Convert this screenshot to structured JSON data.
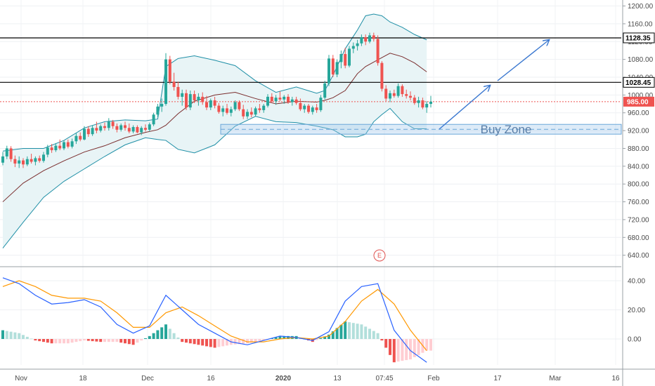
{
  "colors": {
    "up": "#26a69a",
    "down": "#ef5350",
    "band_line": "#1f8fa6",
    "band_fill": "#e8f4f6",
    "basis": "#7a2d2d",
    "level": "#000000",
    "current": "#ef5350",
    "zone": "#9ec7ea",
    "arrow": "#3b78d0",
    "macd": "#2962ff",
    "signal": "#ff9800"
  },
  "chart_data": [
    {
      "type": "candlestick",
      "price_ticks": [
        "1200.00",
        "1160.00",
        "1120.00",
        "1080.00",
        "1040.00",
        "1000.00",
        "960.00",
        "920.00",
        "880.00",
        "840.00",
        "800.00",
        "760.00",
        "720.00",
        "680.00",
        "640.00"
      ],
      "ylim": [
        630,
        1210
      ],
      "time_ticks": [
        "Nov",
        "18",
        "Dec",
        "16",
        "2020",
        "13",
        "07:45",
        "Feb",
        "17",
        "Mar",
        "16"
      ],
      "levels": [
        {
          "label": "1128.35",
          "value": 1128.35
        },
        {
          "label": "1028.45",
          "value": 1028.45
        }
      ],
      "current_price": {
        "label": "985.00",
        "value": 985.0
      },
      "buy_zone": {
        "label": "Buy Zone",
        "low": 912,
        "high": 934
      },
      "event_marker": "E",
      "ohlc": [
        {
          "o": 848,
          "h": 872,
          "l": 842,
          "c": 862
        },
        {
          "o": 862,
          "h": 886,
          "l": 856,
          "c": 880
        },
        {
          "o": 880,
          "h": 885,
          "l": 850,
          "c": 856
        },
        {
          "o": 856,
          "h": 864,
          "l": 838,
          "c": 846
        },
        {
          "o": 846,
          "h": 862,
          "l": 836,
          "c": 853
        },
        {
          "o": 853,
          "h": 858,
          "l": 836,
          "c": 844
        },
        {
          "o": 844,
          "h": 862,
          "l": 840,
          "c": 856
        },
        {
          "o": 856,
          "h": 868,
          "l": 846,
          "c": 850
        },
        {
          "o": 850,
          "h": 862,
          "l": 842,
          "c": 858
        },
        {
          "o": 858,
          "h": 864,
          "l": 848,
          "c": 852
        },
        {
          "o": 852,
          "h": 872,
          "l": 848,
          "c": 866
        },
        {
          "o": 866,
          "h": 888,
          "l": 860,
          "c": 882
        },
        {
          "o": 882,
          "h": 890,
          "l": 870,
          "c": 876
        },
        {
          "o": 876,
          "h": 892,
          "l": 872,
          "c": 886
        },
        {
          "o": 886,
          "h": 900,
          "l": 876,
          "c": 880
        },
        {
          "o": 880,
          "h": 898,
          "l": 876,
          "c": 894
        },
        {
          "o": 894,
          "h": 900,
          "l": 880,
          "c": 884
        },
        {
          "o": 884,
          "h": 902,
          "l": 880,
          "c": 896
        },
        {
          "o": 896,
          "h": 914,
          "l": 890,
          "c": 908
        },
        {
          "o": 908,
          "h": 916,
          "l": 896,
          "c": 900
        },
        {
          "o": 900,
          "h": 930,
          "l": 898,
          "c": 924
        },
        {
          "o": 924,
          "h": 930,
          "l": 906,
          "c": 912
        },
        {
          "o": 912,
          "h": 932,
          "l": 908,
          "c": 926
        },
        {
          "o": 926,
          "h": 940,
          "l": 914,
          "c": 920
        },
        {
          "o": 920,
          "h": 934,
          "l": 916,
          "c": 930
        },
        {
          "o": 930,
          "h": 938,
          "l": 920,
          "c": 926
        },
        {
          "o": 926,
          "h": 948,
          "l": 920,
          "c": 940
        },
        {
          "o": 940,
          "h": 944,
          "l": 924,
          "c": 930
        },
        {
          "o": 930,
          "h": 936,
          "l": 916,
          "c": 922
        },
        {
          "o": 922,
          "h": 936,
          "l": 918,
          "c": 932
        },
        {
          "o": 932,
          "h": 940,
          "l": 920,
          "c": 926
        },
        {
          "o": 926,
          "h": 936,
          "l": 914,
          "c": 918
        },
        {
          "o": 918,
          "h": 932,
          "l": 914,
          "c": 928
        },
        {
          "o": 928,
          "h": 932,
          "l": 914,
          "c": 916
        },
        {
          "o": 916,
          "h": 930,
          "l": 910,
          "c": 926
        },
        {
          "o": 926,
          "h": 934,
          "l": 918,
          "c": 922
        },
        {
          "o": 922,
          "h": 938,
          "l": 918,
          "c": 934
        },
        {
          "o": 934,
          "h": 960,
          "l": 930,
          "c": 956
        },
        {
          "o": 956,
          "h": 980,
          "l": 950,
          "c": 974
        },
        {
          "o": 974,
          "h": 992,
          "l": 962,
          "c": 980
        },
        {
          "o": 980,
          "h": 1094,
          "l": 976,
          "c": 1080
        },
        {
          "o": 1080,
          "h": 1088,
          "l": 1024,
          "c": 1030
        },
        {
          "o": 1030,
          "h": 1050,
          "l": 1010,
          "c": 1018
        },
        {
          "o": 1018,
          "h": 1030,
          "l": 990,
          "c": 996
        },
        {
          "o": 996,
          "h": 1012,
          "l": 976,
          "c": 1004
        },
        {
          "o": 1004,
          "h": 1012,
          "l": 966,
          "c": 972
        },
        {
          "o": 972,
          "h": 1010,
          "l": 966,
          "c": 1002
        },
        {
          "o": 1002,
          "h": 1010,
          "l": 982,
          "c": 988
        },
        {
          "o": 988,
          "h": 1004,
          "l": 976,
          "c": 996
        },
        {
          "o": 996,
          "h": 1006,
          "l": 978,
          "c": 984
        },
        {
          "o": 984,
          "h": 998,
          "l": 966,
          "c": 972
        },
        {
          "o": 972,
          "h": 992,
          "l": 966,
          "c": 988
        },
        {
          "o": 988,
          "h": 996,
          "l": 970,
          "c": 976
        },
        {
          "o": 976,
          "h": 982,
          "l": 958,
          "c": 962
        },
        {
          "o": 962,
          "h": 976,
          "l": 952,
          "c": 970
        },
        {
          "o": 970,
          "h": 980,
          "l": 956,
          "c": 960
        },
        {
          "o": 960,
          "h": 974,
          "l": 952,
          "c": 968
        },
        {
          "o": 968,
          "h": 988,
          "l": 964,
          "c": 984
        },
        {
          "o": 984,
          "h": 988,
          "l": 964,
          "c": 968
        },
        {
          "o": 968,
          "h": 978,
          "l": 946,
          "c": 952
        },
        {
          "o": 952,
          "h": 968,
          "l": 946,
          "c": 962
        },
        {
          "o": 962,
          "h": 972,
          "l": 950,
          "c": 956
        },
        {
          "o": 956,
          "h": 974,
          "l": 952,
          "c": 970
        },
        {
          "o": 970,
          "h": 980,
          "l": 960,
          "c": 966
        },
        {
          "o": 966,
          "h": 980,
          "l": 960,
          "c": 976
        },
        {
          "o": 976,
          "h": 1002,
          "l": 972,
          "c": 996
        },
        {
          "o": 996,
          "h": 1004,
          "l": 982,
          "c": 986
        },
        {
          "o": 986,
          "h": 1000,
          "l": 978,
          "c": 994
        },
        {
          "o": 994,
          "h": 1008,
          "l": 986,
          "c": 990
        },
        {
          "o": 990,
          "h": 1000,
          "l": 980,
          "c": 996
        },
        {
          "o": 996,
          "h": 1002,
          "l": 980,
          "c": 984
        },
        {
          "o": 984,
          "h": 996,
          "l": 976,
          "c": 990
        },
        {
          "o": 990,
          "h": 996,
          "l": 978,
          "c": 982
        },
        {
          "o": 982,
          "h": 992,
          "l": 964,
          "c": 968
        },
        {
          "o": 968,
          "h": 980,
          "l": 960,
          "c": 976
        },
        {
          "o": 976,
          "h": 980,
          "l": 958,
          "c": 962
        },
        {
          "o": 962,
          "h": 976,
          "l": 956,
          "c": 972
        },
        {
          "o": 972,
          "h": 980,
          "l": 960,
          "c": 966
        },
        {
          "o": 966,
          "h": 1000,
          "l": 962,
          "c": 994
        },
        {
          "o": 994,
          "h": 1032,
          "l": 990,
          "c": 1026
        },
        {
          "o": 1026,
          "h": 1090,
          "l": 1020,
          "c": 1082
        },
        {
          "o": 1082,
          "h": 1090,
          "l": 1040,
          "c": 1046
        },
        {
          "o": 1046,
          "h": 1080,
          "l": 1040,
          "c": 1074
        },
        {
          "o": 1074,
          "h": 1100,
          "l": 1060,
          "c": 1092
        },
        {
          "o": 1092,
          "h": 1106,
          "l": 1060,
          "c": 1066
        },
        {
          "o": 1066,
          "h": 1110,
          "l": 1062,
          "c": 1104
        },
        {
          "o": 1104,
          "h": 1118,
          "l": 1094,
          "c": 1110
        },
        {
          "o": 1110,
          "h": 1124,
          "l": 1100,
          "c": 1116
        },
        {
          "o": 1116,
          "h": 1136,
          "l": 1110,
          "c": 1130
        },
        {
          "o": 1130,
          "h": 1136,
          "l": 1112,
          "c": 1120
        },
        {
          "o": 1120,
          "h": 1140,
          "l": 1116,
          "c": 1134
        },
        {
          "o": 1134,
          "h": 1140,
          "l": 1120,
          "c": 1126
        },
        {
          "o": 1126,
          "h": 1134,
          "l": 1066,
          "c": 1072
        },
        {
          "o": 1072,
          "h": 1076,
          "l": 1008,
          "c": 1014
        },
        {
          "o": 1014,
          "h": 1022,
          "l": 986,
          "c": 992
        },
        {
          "o": 992,
          "h": 1010,
          "l": 984,
          "c": 1004
        },
        {
          "o": 1004,
          "h": 1012,
          "l": 994,
          "c": 998
        },
        {
          "o": 998,
          "h": 1026,
          "l": 994,
          "c": 1020
        },
        {
          "o": 1020,
          "h": 1024,
          "l": 996,
          "c": 1002
        },
        {
          "o": 1002,
          "h": 1012,
          "l": 992,
          "c": 998
        },
        {
          "o": 998,
          "h": 1008,
          "l": 988,
          "c": 994
        },
        {
          "o": 994,
          "h": 1000,
          "l": 978,
          "c": 982
        },
        {
          "o": 982,
          "h": 996,
          "l": 972,
          "c": 988
        },
        {
          "o": 988,
          "h": 994,
          "l": 968,
          "c": 972
        },
        {
          "o": 972,
          "h": 986,
          "l": 960,
          "c": 980
        },
        {
          "o": 980,
          "h": 998,
          "l": 972,
          "c": 985
        }
      ],
      "bands": {
        "x_index": [
          0,
          5,
          10,
          15,
          20,
          25,
          30,
          35,
          38,
          40,
          43,
          47,
          52,
          57,
          62,
          67,
          72,
          77,
          79,
          81,
          84,
          87,
          89,
          91,
          93,
          95,
          98,
          101,
          104
        ],
        "upper": [
          874,
          880,
          880,
          898,
          926,
          940,
          944,
          942,
          946,
          1064,
          1082,
          1088,
          1078,
          1066,
          1032,
          1006,
          1018,
          1004,
          1010,
          1044,
          1104,
          1146,
          1178,
          1182,
          1178,
          1164,
          1152,
          1136,
          1124
        ],
        "basis": [
          760,
          802,
          830,
          852,
          872,
          886,
          904,
          916,
          922,
          932,
          958,
          986,
          1000,
          1006,
          992,
          980,
          986,
          984,
          988,
          994,
          1010,
          1048,
          1064,
          1074,
          1084,
          1094,
          1086,
          1072,
          1052
        ],
        "lower": [
          656,
          714,
          770,
          806,
          834,
          862,
          888,
          904,
          900,
          898,
          878,
          870,
          888,
          930,
          952,
          940,
          938,
          930,
          926,
          922,
          906,
          906,
          912,
          940,
          956,
          970,
          940,
          924,
          924
        ]
      }
    },
    {
      "type": "macd",
      "ticks": [
        "40.00",
        "20.00",
        "0.00"
      ],
      "ylim": [
        -18,
        46
      ],
      "x_index": [
        0,
        4,
        8,
        12,
        16,
        20,
        24,
        28,
        32,
        36,
        40,
        44,
        48,
        52,
        56,
        60,
        64,
        68,
        72,
        76,
        80,
        84,
        88,
        92,
        96,
        100,
        104
      ],
      "macd": [
        42,
        38,
        30,
        24,
        25,
        27,
        22,
        10,
        4,
        9,
        30,
        20,
        10,
        4,
        -2,
        -4,
        -1,
        2,
        1,
        -1,
        5,
        26,
        36,
        38,
        6,
        -8,
        -16
      ],
      "signal": [
        36,
        40,
        36,
        30,
        28,
        28,
        26,
        18,
        8,
        8,
        18,
        22,
        16,
        9,
        2,
        -2,
        -2,
        0,
        1,
        0,
        2,
        12,
        26,
        34,
        24,
        6,
        -8
      ],
      "histogram": [
        6,
        4,
        -1,
        -3,
        -3,
        -1,
        -2,
        -2,
        -4,
        2,
        10,
        -2,
        -4,
        -6,
        -4,
        -3,
        -1,
        2,
        2,
        -2,
        3,
        12,
        10,
        4,
        -16,
        -14,
        -8
      ]
    }
  ]
}
